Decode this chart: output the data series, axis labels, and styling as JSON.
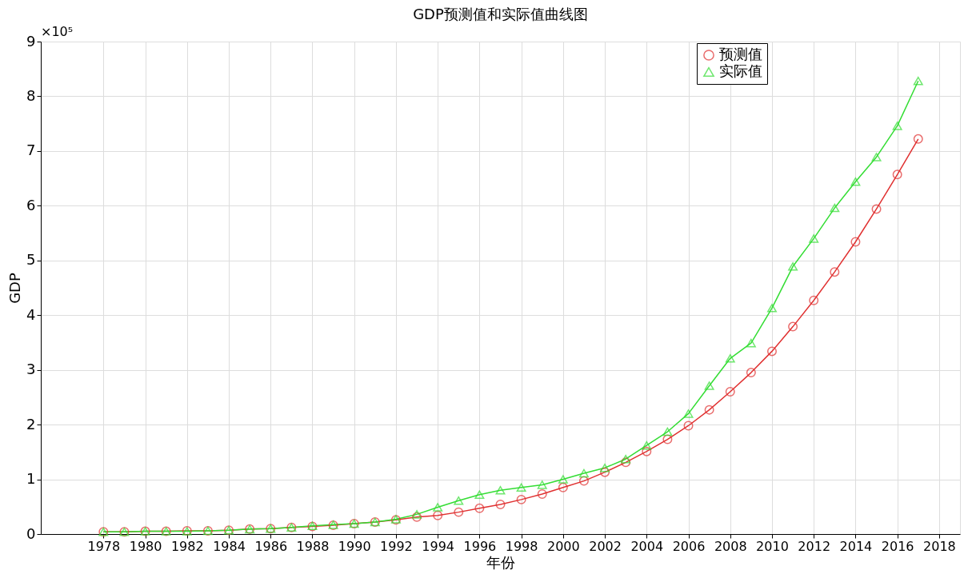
{
  "chart_data": {
    "type": "line",
    "title": "GDP预测值和实际值曲线图",
    "xlabel": "年份",
    "ylabel": "GDP",
    "annotations": [
      "×10⁵"
    ],
    "x": [
      1978,
      1979,
      1980,
      1981,
      1982,
      1983,
      1984,
      1985,
      1986,
      1987,
      1988,
      1989,
      1990,
      1991,
      1992,
      1993,
      1994,
      1995,
      1996,
      1997,
      1998,
      1999,
      2000,
      2001,
      2002,
      2003,
      2004,
      2005,
      2006,
      2007,
      2008,
      2009,
      2010,
      2011,
      2012,
      2013,
      2014,
      2015,
      2016,
      2017
    ],
    "series": [
      {
        "name": "预测值",
        "color": "#e03030",
        "marker": "circle",
        "values": [
          0.04,
          0.04,
          0.05,
          0.05,
          0.06,
          0.06,
          0.07,
          0.09,
          0.1,
          0.12,
          0.14,
          0.16,
          0.19,
          0.22,
          0.26,
          0.31,
          0.34,
          0.4,
          0.47,
          0.54,
          0.63,
          0.73,
          0.85,
          0.97,
          1.13,
          1.31,
          1.51,
          1.73,
          1.98,
          2.27,
          2.6,
          2.95,
          3.34,
          3.79,
          4.27,
          4.79,
          5.34,
          5.94,
          6.57,
          7.22
        ]
      },
      {
        "name": "实际值",
        "color": "#33dd33",
        "marker": "triangle",
        "values": [
          0.04,
          0.04,
          0.05,
          0.05,
          0.05,
          0.06,
          0.07,
          0.09,
          0.1,
          0.12,
          0.15,
          0.17,
          0.19,
          0.22,
          0.27,
          0.36,
          0.49,
          0.61,
          0.72,
          0.8,
          0.85,
          0.9,
          1.0,
          1.11,
          1.21,
          1.37,
          1.62,
          1.87,
          2.2,
          2.71,
          3.21,
          3.49,
          4.13,
          4.89,
          5.4,
          5.96,
          6.44,
          6.89,
          7.46,
          8.28
        ]
      }
    ],
    "xlim": [
      1975,
      2019
    ],
    "xticks": [
      1978,
      1980,
      1982,
      1984,
      1986,
      1988,
      1990,
      1992,
      1994,
      1996,
      1998,
      2000,
      2002,
      2004,
      2006,
      2008,
      2010,
      2012,
      2014,
      2016,
      2018
    ],
    "ylim": [
      0,
      9
    ],
    "yticks": [
      0,
      1,
      2,
      3,
      4,
      5,
      6,
      7,
      8,
      9
    ],
    "grid": true,
    "legend": "top right",
    "line_style": "solid"
  }
}
